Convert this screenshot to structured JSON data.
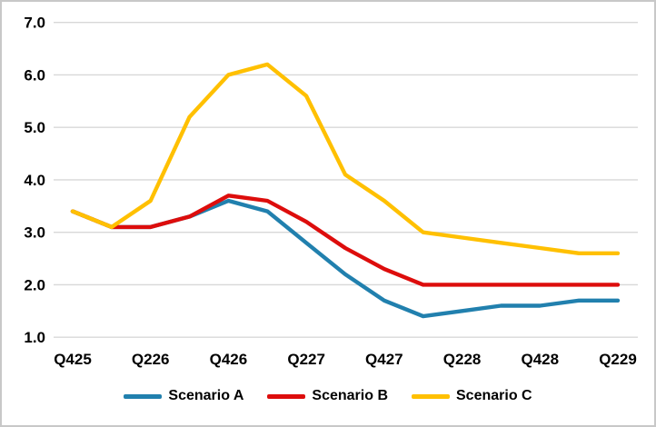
{
  "frame": {
    "background": "#FFFFFF",
    "border_color": "#C8C8C8"
  },
  "chart_data": {
    "type": "line",
    "title": "",
    "x_points": [
      "Q425",
      "Q126",
      "Q226",
      "Q326",
      "Q426",
      "Q127",
      "Q227",
      "Q327",
      "Q427",
      "Q128",
      "Q228",
      "Q328",
      "Q428",
      "Q129",
      "Q229"
    ],
    "x_axis_labels": [
      "Q425",
      "Q226",
      "Q426",
      "Q227",
      "Q427",
      "Q228",
      "Q428",
      "Q229"
    ],
    "y_ticks": [
      "7.0",
      "6.0",
      "5.0",
      "4.0",
      "3.0",
      "2.0",
      "1.0"
    ],
    "ylim": [
      1.0,
      7.0
    ],
    "grid": true,
    "gridline_color": "#D8D8D8",
    "text_color": "#000000",
    "legend_position": "bottom",
    "series": [
      {
        "name": "Scenario A",
        "color": "#2180AE",
        "values": [
          3.4,
          3.1,
          3.1,
          3.3,
          3.6,
          3.4,
          2.8,
          2.2,
          1.7,
          1.4,
          1.5,
          1.6,
          1.6,
          1.7,
          1.7
        ]
      },
      {
        "name": "Scenario B",
        "color": "#DD0D0C",
        "values": [
          3.4,
          3.1,
          3.1,
          3.3,
          3.7,
          3.6,
          3.2,
          2.7,
          2.3,
          2.0,
          2.0,
          2.0,
          2.0,
          2.0,
          2.0
        ]
      },
      {
        "name": "Scenario C",
        "color": "#FFC000",
        "values": [
          3.4,
          3.1,
          3.6,
          5.2,
          6.0,
          6.2,
          5.6,
          4.1,
          3.6,
          3.0,
          2.9,
          2.8,
          2.7,
          2.6,
          2.6
        ]
      }
    ]
  }
}
